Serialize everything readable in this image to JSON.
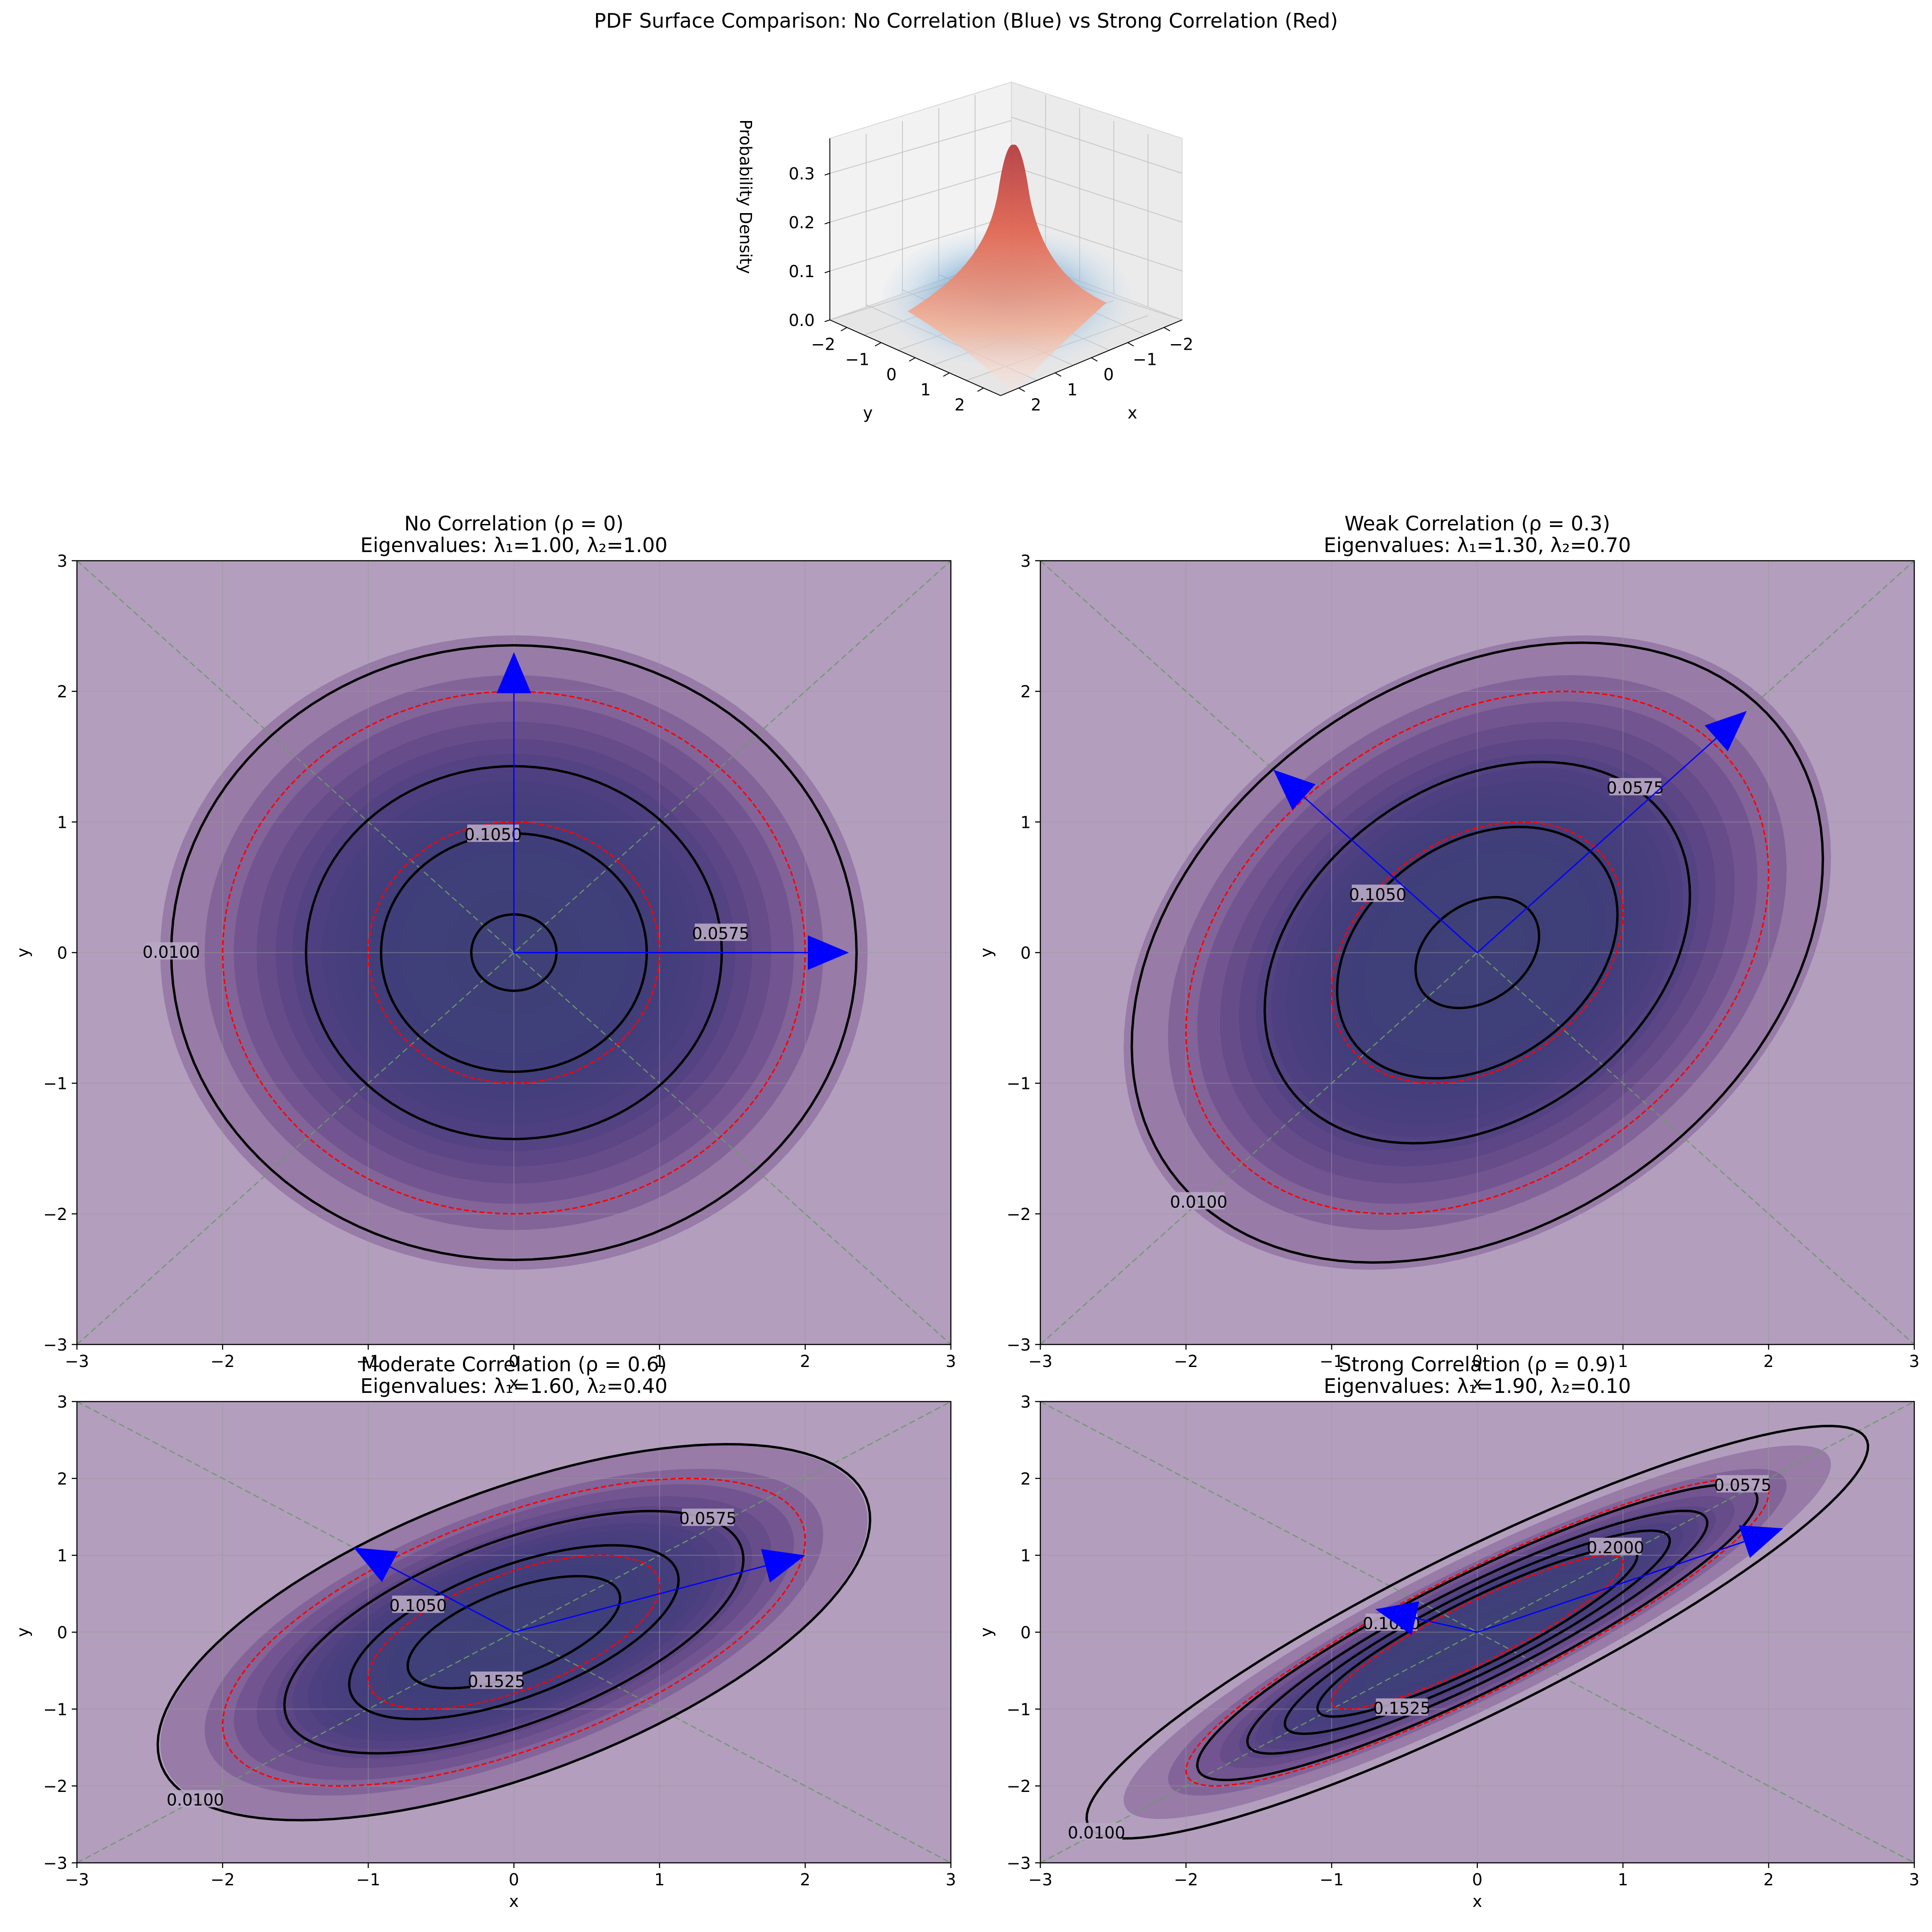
{
  "figure": {
    "title": "PDF Surface Comparison: No Correlation (Blue) vs Strong Correlation (Red)"
  },
  "chart_data": [
    {
      "type": "surface",
      "title": "",
      "xlabel": "x",
      "ylabel": "y",
      "zlabel": "Probability Density",
      "x_ticks": [
        "2",
        "1",
        "0",
        "−1",
        "−2"
      ],
      "y_ticks": [
        "−2",
        "−1",
        "0",
        "1",
        "2"
      ],
      "z_ticks": [
        "0.0",
        "0.1",
        "0.2",
        "0.3"
      ],
      "series": [
        {
          "name": "No Correlation",
          "rho": 0,
          "peak": 0.159,
          "color": "#4a8ac2"
        },
        {
          "name": "Strong Correlation",
          "rho": 0.9,
          "peak": 0.365,
          "color": "#c03a3a"
        }
      ]
    },
    {
      "type": "contour",
      "title": "No Correlation (ρ = 0)",
      "subtitle": "Eigenvalues: λ₁=1.00, λ₂=1.00",
      "rho": 0,
      "eigenvalues": [
        1.0,
        1.0
      ],
      "xlabel": "x",
      "ylabel": "y",
      "xlim": [
        -3,
        3
      ],
      "ylim": [
        -3,
        3
      ],
      "ticks": [
        "−3",
        "−2",
        "−1",
        "0",
        "1",
        "2",
        "3"
      ],
      "contour_levels": [
        0.01,
        0.0575,
        0.105,
        0.1525
      ],
      "contour_labels": [
        "0.0100",
        "0.0575",
        "0.1050"
      ],
      "sigma_ellipses": [
        1,
        2
      ],
      "eigenvector_arrows": [
        [
          2.3,
          0
        ],
        [
          0,
          2.3
        ]
      ],
      "grid": true
    },
    {
      "type": "contour",
      "title": "Weak Correlation (ρ = 0.3)",
      "subtitle": "Eigenvalues: λ₁=1.30, λ₂=0.70",
      "rho": 0.3,
      "eigenvalues": [
        1.3,
        0.7
      ],
      "xlabel": "x",
      "ylabel": "y",
      "xlim": [
        -3,
        3
      ],
      "ylim": [
        -3,
        3
      ],
      "ticks": [
        "−3",
        "−2",
        "−1",
        "0",
        "1",
        "2",
        "3"
      ],
      "contour_levels": [
        0.01,
        0.0575,
        0.105,
        0.1525
      ],
      "contour_labels": [
        "0.0100",
        "0.0575",
        "0.1050"
      ],
      "sigma_ellipses": [
        1,
        2
      ],
      "eigenvector_arrows": [
        [
          1.85,
          1.85
        ],
        [
          -1.4,
          1.4
        ]
      ],
      "grid": true
    },
    {
      "type": "contour",
      "title": "Moderate Correlation (ρ = 0.6)",
      "subtitle": "Eigenvalues: λ₁=1.60, λ₂=0.40",
      "rho": 0.6,
      "eigenvalues": [
        1.6,
        0.4
      ],
      "xlabel": "x",
      "ylabel": "y",
      "xlim": [
        -3,
        3
      ],
      "ylim": [
        -3,
        3
      ],
      "ticks": [
        "−3",
        "−2",
        "−1",
        "0",
        "1",
        "2",
        "3"
      ],
      "contour_levels": [
        0.01,
        0.0575,
        0.105,
        0.1525
      ],
      "contour_labels": [
        "0.0100",
        "0.0575",
        "0.1050",
        "0.1525"
      ],
      "sigma_ellipses": [
        1,
        2
      ],
      "eigenvector_arrows": [
        [
          2.0,
          1.0
        ],
        [
          -1.1,
          1.1
        ]
      ],
      "grid": true
    },
    {
      "type": "contour",
      "title": "Strong Correlation (ρ = 0.9)",
      "subtitle": "Eigenvalues: λ₁=1.90, λ₂=0.10",
      "rho": 0.9,
      "eigenvalues": [
        1.9,
        0.1
      ],
      "xlabel": "x",
      "ylabel": "y",
      "xlim": [
        -3,
        3
      ],
      "ylim": [
        -3,
        3
      ],
      "ticks": [
        "−3",
        "−2",
        "−1",
        "0",
        "1",
        "2",
        "3"
      ],
      "contour_levels": [
        0.01,
        0.0575,
        0.105,
        0.1525,
        0.2
      ],
      "contour_labels": [
        "0.0100",
        "0.0575",
        "0.1050",
        "0.1525",
        "0.2000"
      ],
      "sigma_ellipses": [
        1,
        2
      ],
      "eigenvector_arrows": [
        [
          2.1,
          1.35
        ],
        [
          -0.7,
          0.3
        ]
      ],
      "grid": true
    }
  ]
}
